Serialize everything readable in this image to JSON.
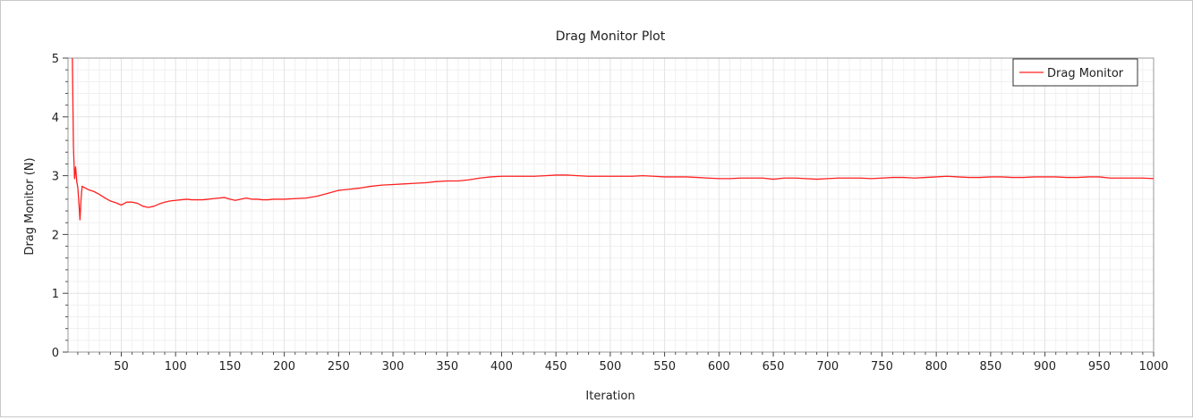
{
  "window": {
    "title": "Drag Monitor Plot"
  },
  "chart_data": {
    "type": "line",
    "title": "Drag Monitor Plot",
    "xlabel": "Iteration",
    "ylabel": "Drag Monitor (N)",
    "xlim": [
      1,
      1000
    ],
    "ylim": [
      0,
      5
    ],
    "xticks": [
      50,
      100,
      150,
      200,
      250,
      300,
      350,
      400,
      450,
      500,
      550,
      600,
      650,
      700,
      750,
      800,
      850,
      900,
      950,
      1000
    ],
    "yticks": [
      0,
      1,
      2,
      3,
      4,
      5
    ],
    "grid": true,
    "legend_position": "top-right",
    "series": [
      {
        "name": "Drag Monitor",
        "color": "#ff2020",
        "x": [
          5,
          6,
          7,
          8,
          9,
          10,
          11,
          12,
          13,
          14,
          16,
          18,
          20,
          25,
          30,
          35,
          40,
          45,
          50,
          55,
          60,
          65,
          70,
          75,
          80,
          85,
          90,
          95,
          100,
          105,
          110,
          115,
          120,
          125,
          130,
          135,
          140,
          145,
          150,
          155,
          160,
          165,
          170,
          175,
          180,
          185,
          190,
          200,
          210,
          220,
          230,
          240,
          250,
          260,
          270,
          280,
          290,
          300,
          310,
          320,
          330,
          340,
          350,
          360,
          370,
          380,
          390,
          400,
          410,
          420,
          430,
          440,
          450,
          460,
          470,
          480,
          490,
          500,
          510,
          520,
          530,
          540,
          550,
          560,
          570,
          580,
          590,
          600,
          610,
          620,
          630,
          640,
          650,
          660,
          670,
          680,
          690,
          700,
          710,
          720,
          730,
          740,
          750,
          760,
          770,
          780,
          790,
          800,
          810,
          820,
          830,
          840,
          850,
          860,
          870,
          880,
          890,
          900,
          910,
          920,
          930,
          940,
          950,
          960,
          970,
          980,
          990,
          1000
        ],
        "values": [
          5.0,
          3.5,
          2.95,
          3.15,
          2.9,
          2.8,
          2.55,
          2.25,
          2.6,
          2.82,
          2.8,
          2.78,
          2.76,
          2.73,
          2.68,
          2.62,
          2.57,
          2.54,
          2.5,
          2.55,
          2.55,
          2.53,
          2.48,
          2.46,
          2.48,
          2.52,
          2.55,
          2.57,
          2.58,
          2.59,
          2.6,
          2.59,
          2.59,
          2.59,
          2.6,
          2.61,
          2.62,
          2.63,
          2.6,
          2.58,
          2.6,
          2.62,
          2.6,
          2.6,
          2.59,
          2.59,
          2.6,
          2.6,
          2.61,
          2.62,
          2.65,
          2.7,
          2.75,
          2.77,
          2.79,
          2.82,
          2.84,
          2.85,
          2.86,
          2.87,
          2.88,
          2.9,
          2.91,
          2.91,
          2.93,
          2.96,
          2.98,
          2.99,
          2.99,
          2.99,
          2.99,
          3.0,
          3.01,
          3.01,
          3.0,
          2.99,
          2.99,
          2.99,
          2.99,
          2.99,
          3.0,
          2.99,
          2.98,
          2.98,
          2.98,
          2.97,
          2.96,
          2.95,
          2.95,
          2.96,
          2.96,
          2.96,
          2.94,
          2.96,
          2.96,
          2.95,
          2.94,
          2.95,
          2.96,
          2.96,
          2.96,
          2.95,
          2.96,
          2.97,
          2.97,
          2.96,
          2.97,
          2.98,
          2.99,
          2.98,
          2.97,
          2.97,
          2.98,
          2.98,
          2.97,
          2.97,
          2.98,
          2.98,
          2.98,
          2.97,
          2.97,
          2.98,
          2.98,
          2.96,
          2.96,
          2.96,
          2.96,
          2.95
        ]
      }
    ]
  }
}
